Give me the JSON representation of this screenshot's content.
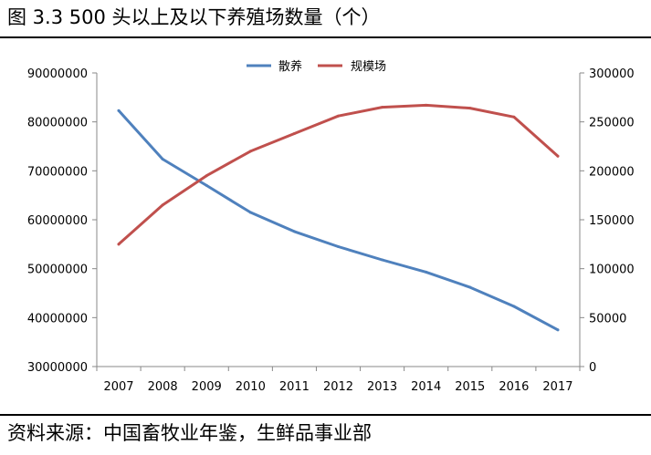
{
  "title": "图 3.3 500 头以上及以下养殖场数量（个）",
  "source": "资料来源：中国畜牧业年鉴，生鲜品事业部",
  "chart_data": {
    "type": "line",
    "x": [
      "2007",
      "2008",
      "2009",
      "2010",
      "2011",
      "2012",
      "2013",
      "2014",
      "2015",
      "2016",
      "2017"
    ],
    "series": [
      {
        "name": "散养",
        "axis": "left",
        "color": "#4f81bd",
        "values": [
          82300000,
          72400000,
          67000000,
          61500000,
          57600000,
          54500000,
          51800000,
          49300000,
          46200000,
          42300000,
          37500000
        ]
      },
      {
        "name": "规模场",
        "axis": "right",
        "color": "#c0504d",
        "values": [
          125000,
          165000,
          195000,
          220000,
          238000,
          256000,
          265000,
          267000,
          264000,
          255000,
          215000
        ]
      }
    ],
    "y_left": {
      "min": 30000000,
      "max": 90000000,
      "ticks": [
        "90000000",
        "80000000",
        "70000000",
        "60000000",
        "50000000",
        "40000000",
        "30000000"
      ]
    },
    "y_right": {
      "min": 0,
      "max": 300000,
      "ticks": [
        "300000",
        "250000",
        "200000",
        "150000",
        "100000",
        "50000",
        "0"
      ]
    },
    "legend_position": "top-center",
    "grid": false
  }
}
